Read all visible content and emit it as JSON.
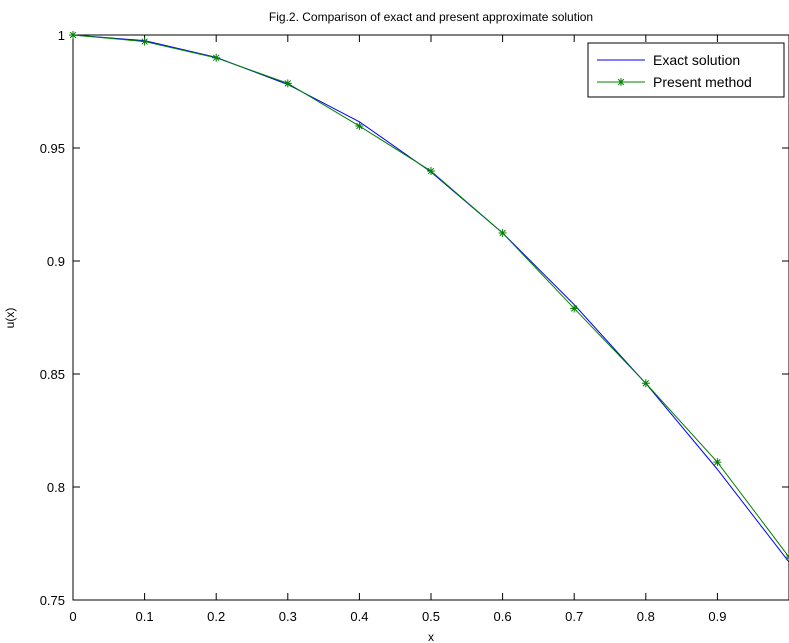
{
  "chart_data": {
    "type": "line",
    "title": "Fig.2. Comparison of exact and present approximate solution",
    "xlabel": "x",
    "ylabel": "u(x)",
    "xlim": [
      0,
      1
    ],
    "ylim": [
      0.75,
      1
    ],
    "x_ticks": [
      "0",
      "0.1",
      "0.2",
      "0.3",
      "0.4",
      "0.5",
      "0.6",
      "0.7",
      "0.8",
      "0.9"
    ],
    "y_ticks": [
      "0.75",
      "0.8",
      "0.85",
      "0.9",
      "0.95",
      "1"
    ],
    "grid": false,
    "legend_position": "top-right",
    "series": [
      {
        "name": "Exact solution",
        "color": "#0000ff",
        "marker": "none",
        "x": [
          0,
          0.1,
          0.2,
          0.3,
          0.4,
          0.5,
          0.6,
          0.7,
          0.8,
          0.9,
          1.0
        ],
        "values": [
          1.0,
          0.9975,
          0.9901,
          0.9781,
          0.9616,
          0.9394,
          0.9124,
          0.8807,
          0.8458,
          0.8078,
          0.7668
        ]
      },
      {
        "name": "Present method",
        "color": "#008000",
        "marker": "star",
        "x": [
          0,
          0.1,
          0.2,
          0.3,
          0.4,
          0.5,
          0.6,
          0.7,
          0.8,
          0.9,
          1.0
        ],
        "values": [
          1.0,
          0.9971,
          0.9899,
          0.9786,
          0.9597,
          0.9398,
          0.9124,
          0.879,
          0.8459,
          0.811,
          0.769
        ]
      }
    ]
  }
}
